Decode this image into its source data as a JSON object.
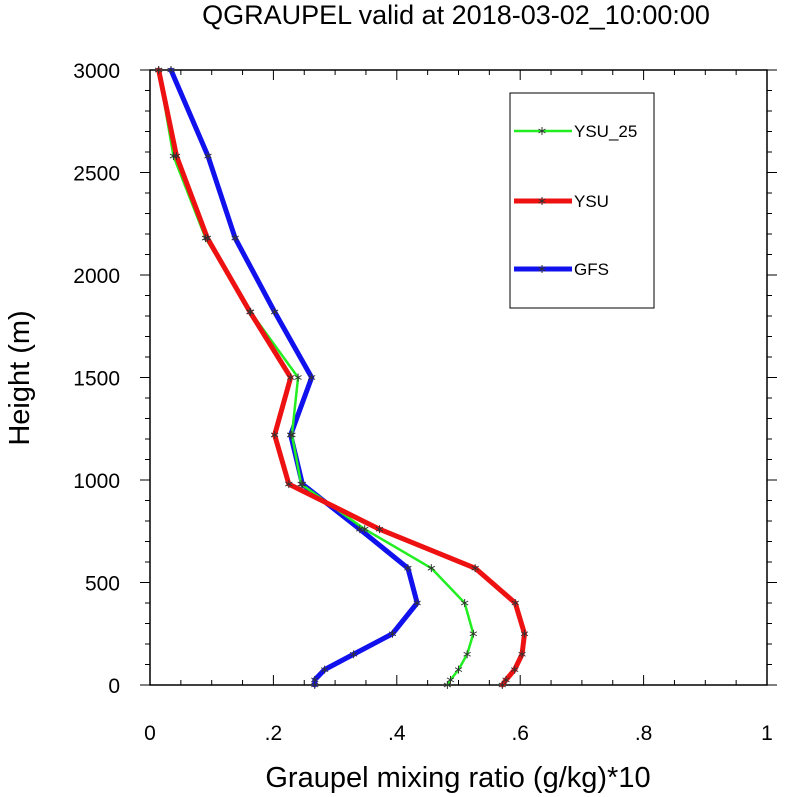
{
  "chart_data": {
    "type": "line",
    "title": "QGRAUPEL valid at 2018-03-02_10:00:00",
    "xlabel": "Graupel mixing ratio (g/kg)*10",
    "ylabel": "Height (m)",
    "xlim": [
      0,
      1
    ],
    "ylim": [
      0,
      3000
    ],
    "x_ticks": [
      0,
      0.2,
      0.4,
      0.6,
      0.8,
      1
    ],
    "x_tick_labels": [
      "0",
      ".2",
      ".4",
      ".6",
      ".8",
      "1"
    ],
    "y_ticks": [
      0,
      500,
      1000,
      1500,
      2000,
      2500,
      3000
    ],
    "y_tick_labels": [
      "0",
      "500",
      "1000",
      "1500",
      "2000",
      "2500",
      "3000"
    ],
    "grid": false,
    "legend_position": "top-right",
    "marker": "asterisk",
    "series": [
      {
        "name": "YSU_25",
        "color": "#22ee22",
        "line_width": "thin",
        "x": [
          0.482,
          0.487,
          0.5,
          0.514,
          0.524,
          0.51,
          0.456,
          0.348,
          0.245,
          0.23,
          0.24,
          0.163,
          0.09,
          0.038,
          0.014
        ],
        "y": [
          0,
          25,
          75,
          150,
          250,
          400,
          570,
          760,
          980,
          1220,
          1500,
          1820,
          2180,
          2580,
          3000
        ]
      },
      {
        "name": "YSU",
        "color": "#ee1111",
        "line_width": "thick",
        "x": [
          0.571,
          0.577,
          0.591,
          0.603,
          0.607,
          0.592,
          0.527,
          0.372,
          0.225,
          0.202,
          0.228,
          0.162,
          0.093,
          0.043,
          0.014
        ],
        "y": [
          0,
          25,
          75,
          150,
          250,
          400,
          570,
          760,
          980,
          1220,
          1500,
          1820,
          2180,
          2580,
          3000
        ]
      },
      {
        "name": "GFS",
        "color": "#1111ee",
        "line_width": "thick",
        "x": [
          0.267,
          0.267,
          0.283,
          0.33,
          0.393,
          0.433,
          0.418,
          0.34,
          0.247,
          0.228,
          0.262,
          0.202,
          0.138,
          0.094,
          0.034
        ],
        "y": [
          0,
          25,
          75,
          150,
          250,
          400,
          570,
          760,
          980,
          1220,
          1500,
          1820,
          2180,
          2580,
          3000
        ]
      }
    ]
  }
}
